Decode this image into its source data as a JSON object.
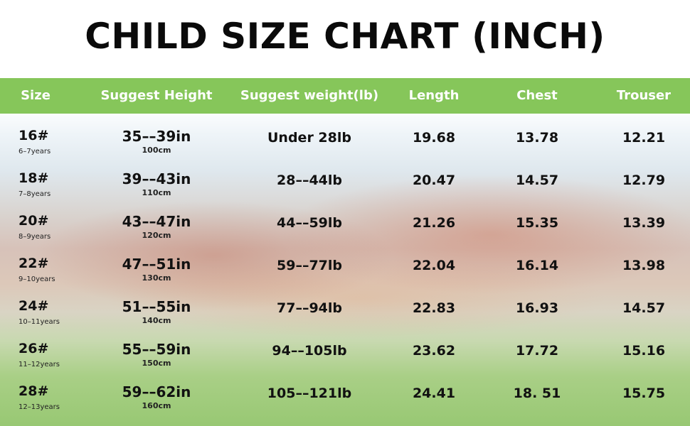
{
  "title": "CHILD SIZE CHART (INCH)",
  "header": {
    "size": "Size",
    "height": "Suggest Height",
    "weight": "Suggest weight(lb)",
    "length": "Length",
    "chest": "Chest",
    "trouser": "Trouser"
  },
  "rows": [
    {
      "size": "16#",
      "age": "6–7years",
      "height": "35––39in",
      "height_cm": "100cm",
      "weight": "Under 28lb",
      "length": "19.68",
      "chest": "13.78",
      "trouser": "12.21"
    },
    {
      "size": "18#",
      "age": "7–8years",
      "height": "39––43in",
      "height_cm": "110cm",
      "weight": "28––44lb",
      "length": "20.47",
      "chest": "14.57",
      "trouser": "12.79"
    },
    {
      "size": "20#",
      "age": "8–9years",
      "height": "43––47in",
      "height_cm": "120cm",
      "weight": "44––59lb",
      "length": "21.26",
      "chest": "15.35",
      "trouser": "13.39"
    },
    {
      "size": "22#",
      "age": "9–10years",
      "height": "47––51in",
      "height_cm": "130cm",
      "weight": "59––77lb",
      "length": "22.04",
      "chest": "16.14",
      "trouser": "13.98"
    },
    {
      "size": "24#",
      "age": "10–11years",
      "height": "51––55in",
      "height_cm": "140cm",
      "weight": "77––94lb",
      "length": "22.83",
      "chest": "16.93",
      "trouser": "14.57"
    },
    {
      "size": "26#",
      "age": "11–12years",
      "height": "55––59in",
      "height_cm": "150cm",
      "weight": "94––105lb",
      "length": "23.62",
      "chest": "17.72",
      "trouser": "15.16"
    },
    {
      "size": "28#",
      "age": "12–13years",
      "height": "59––62in",
      "height_cm": "160cm",
      "weight": "105––121lb",
      "length": "24.41",
      "chest": "18. 51",
      "trouser": "15.75"
    }
  ],
  "colors": {
    "header_bg": "#86c65a",
    "header_text": "#ffffff",
    "title_text": "#0a0a0a"
  }
}
